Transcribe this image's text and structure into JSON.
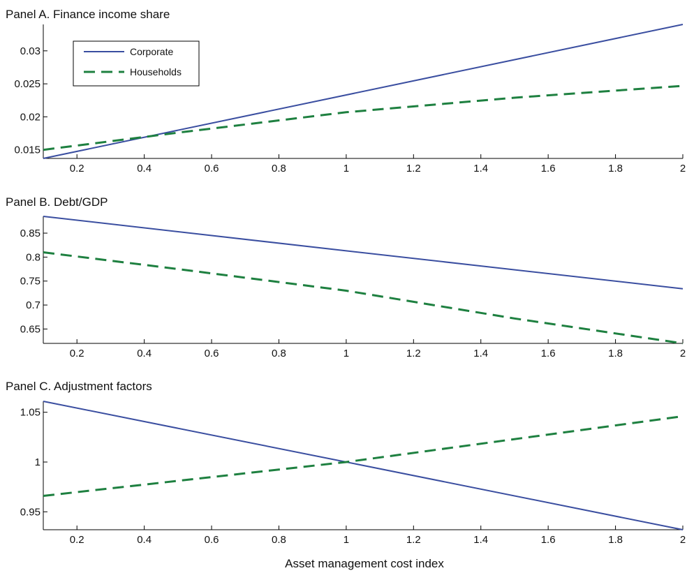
{
  "chart_data": [
    {
      "type": "line",
      "title": "Panel A. Finance income share",
      "xlim": [
        0.1,
        2.0
      ],
      "ylim": [
        0.0137,
        0.034
      ],
      "xticks": [
        "0.2",
        "0.4",
        "0.6",
        "0.8",
        "1",
        "1.2",
        "1.4",
        "1.6",
        "1.8",
        "2"
      ],
      "yticks": [
        "0.015",
        "0.02",
        "0.025",
        "0.03"
      ],
      "legend": "top-left",
      "series": [
        {
          "name": "Corporate",
          "style": "solid",
          "color": "#3a4ea0",
          "x": [
            0.1,
            2.0
          ],
          "y": [
            0.0137,
            0.034
          ]
        },
        {
          "name": "Households",
          "style": "dashed",
          "color": "#1e8040",
          "x": [
            0.1,
            0.5,
            1.0,
            1.5,
            2.0
          ],
          "y": [
            0.015,
            0.0176,
            0.0207,
            0.0229,
            0.0247
          ]
        }
      ]
    },
    {
      "type": "line",
      "title": "Panel B. Debt/GDP",
      "xlim": [
        0.1,
        2.0
      ],
      "ylim": [
        0.62,
        0.885
      ],
      "xticks": [
        "0.2",
        "0.4",
        "0.6",
        "0.8",
        "1",
        "1.2",
        "1.4",
        "1.6",
        "1.8",
        "2"
      ],
      "yticks": [
        "0.65",
        "0.7",
        "0.75",
        "0.8",
        "0.85"
      ],
      "series": [
        {
          "name": "Corporate",
          "style": "solid",
          "color": "#3a4ea0",
          "x": [
            0.1,
            1.0,
            2.0
          ],
          "y": [
            0.885,
            0.813,
            0.734
          ]
        },
        {
          "name": "Households",
          "style": "dashed",
          "color": "#1e8040",
          "x": [
            0.1,
            0.5,
            1.0,
            1.5,
            2.0
          ],
          "y": [
            0.81,
            0.775,
            0.73,
            0.672,
            0.62
          ]
        }
      ]
    },
    {
      "type": "line",
      "title": "Panel C. Adjustment factors",
      "xlabel": "Asset management cost index",
      "xlim": [
        0.1,
        2.0
      ],
      "ylim": [
        0.932,
        1.061
      ],
      "xticks": [
        "0.2",
        "0.4",
        "0.6",
        "0.8",
        "1",
        "1.2",
        "1.4",
        "1.6",
        "1.8",
        "2"
      ],
      "yticks": [
        "0.95",
        "1",
        "1.05"
      ],
      "series": [
        {
          "name": "Corporate",
          "style": "solid",
          "color": "#3a4ea0",
          "x": [
            0.1,
            1.0,
            2.0
          ],
          "y": [
            1.061,
            1.0,
            0.932
          ]
        },
        {
          "name": "Households",
          "style": "dashed",
          "color": "#1e8040",
          "x": [
            0.1,
            1.0,
            2.0
          ],
          "y": [
            0.966,
            1.0,
            1.046
          ]
        }
      ]
    }
  ]
}
